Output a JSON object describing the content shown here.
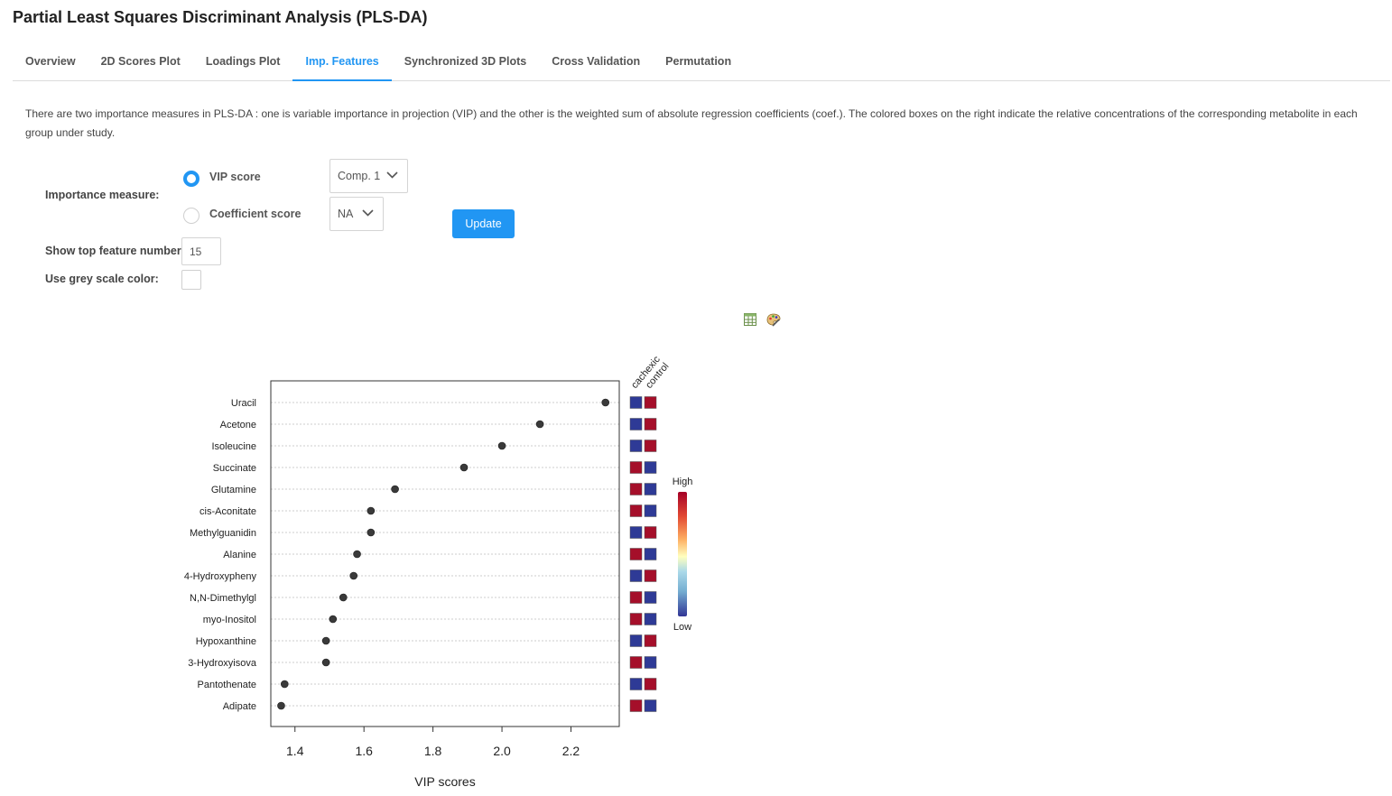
{
  "page": {
    "title": "Partial Least Squares Discriminant Analysis (PLS-DA)"
  },
  "tabs": [
    {
      "label": "Overview",
      "active": false
    },
    {
      "label": "2D Scores Plot",
      "active": false
    },
    {
      "label": "Loadings Plot",
      "active": false
    },
    {
      "label": "Imp. Features",
      "active": true
    },
    {
      "label": "Synchronized 3D Plots",
      "active": false
    },
    {
      "label": "Cross Validation",
      "active": false
    },
    {
      "label": "Permutation",
      "active": false
    }
  ],
  "description": "There are two importance measures in PLS-DA : one is variable importance in projection (VIP) and the other is the weighted sum of absolute regression coefficients (coef.). The colored boxes on the right indicate the relative concentrations of the corresponding metabolite in each group under study.",
  "form": {
    "importance_label": "Importance measure:",
    "vip_label": "VIP score",
    "vip_selected": true,
    "coef_label": "Coefficient score",
    "vip_component": "Comp. 1",
    "coef_component": "NA",
    "update_label": "Update",
    "top_label": "Show top feature number:",
    "top_value": "15",
    "grey_label": "Use grey scale color:",
    "grey_checked": false
  },
  "icons": [
    "table-download-icon",
    "palette-edit-icon"
  ],
  "colors": {
    "accent": "#2196F3",
    "high": "#A50F2A",
    "low": "#2E3A96",
    "point": "#3a3a3a"
  },
  "chart_data": {
    "type": "scatter",
    "xlabel": "VIP scores",
    "xlim": [
      1.33,
      2.34
    ],
    "xticks": [
      1.4,
      1.6,
      1.8,
      2.0,
      2.2
    ],
    "xtick_labels": [
      "1.4",
      "1.6",
      "1.8",
      "2.0",
      "2.2"
    ],
    "groups": [
      "cachexic",
      "control"
    ],
    "legend": {
      "high": "High",
      "low": "Low"
    },
    "features": [
      {
        "name": "Uracil",
        "vip": 2.3,
        "cachexic": "low",
        "control": "high"
      },
      {
        "name": "Acetone",
        "vip": 2.11,
        "cachexic": "low",
        "control": "high"
      },
      {
        "name": "Isoleucine",
        "vip": 2.0,
        "cachexic": "low",
        "control": "high"
      },
      {
        "name": "Succinate",
        "vip": 1.89,
        "cachexic": "high",
        "control": "low"
      },
      {
        "name": "Glutamine",
        "vip": 1.69,
        "cachexic": "high",
        "control": "low"
      },
      {
        "name": "cis-Aconitate",
        "vip": 1.62,
        "cachexic": "high",
        "control": "low"
      },
      {
        "name": "Methylguanidin",
        "vip": 1.62,
        "cachexic": "low",
        "control": "high"
      },
      {
        "name": "Alanine",
        "vip": 1.58,
        "cachexic": "high",
        "control": "low"
      },
      {
        "name": "4-Hydroxypheny",
        "vip": 1.57,
        "cachexic": "low",
        "control": "high"
      },
      {
        "name": "N,N-Dimethylgl",
        "vip": 1.54,
        "cachexic": "high",
        "control": "low"
      },
      {
        "name": "myo-Inositol",
        "vip": 1.51,
        "cachexic": "high",
        "control": "low"
      },
      {
        "name": "Hypoxanthine",
        "vip": 1.49,
        "cachexic": "low",
        "control": "high"
      },
      {
        "name": "3-Hydroxyisova",
        "vip": 1.49,
        "cachexic": "high",
        "control": "low"
      },
      {
        "name": "Pantothenate",
        "vip": 1.37,
        "cachexic": "low",
        "control": "high"
      },
      {
        "name": "Adipate",
        "vip": 1.36,
        "cachexic": "high",
        "control": "low"
      }
    ]
  }
}
